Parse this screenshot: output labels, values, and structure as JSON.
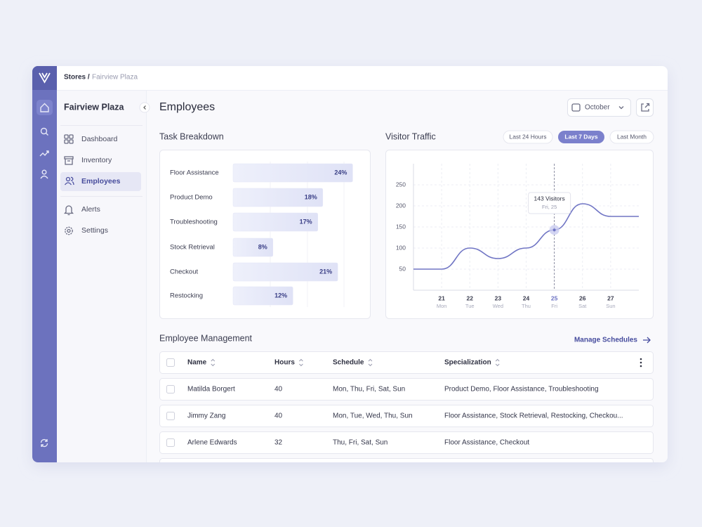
{
  "breadcrumb": {
    "root": "Stores /",
    "current": "Fairview Plaza"
  },
  "sidebar": {
    "store": "Fairview Plaza",
    "items": [
      "Dashboard",
      "Inventory",
      "Employees",
      "Alerts",
      "Settings"
    ],
    "active": "Employees"
  },
  "header": {
    "title": "Employees",
    "month": "October"
  },
  "task_breakdown": {
    "type": "bar",
    "title": "Task Breakdown",
    "categories": [
      "Floor Assistance",
      "Product Demo",
      "Troubleshooting",
      "Stock Retrieval",
      "Checkout",
      "Restocking"
    ],
    "values": [
      24,
      18,
      17,
      8,
      21,
      12
    ],
    "value_labels": [
      "24%",
      "18%",
      "17%",
      "8%",
      "21%",
      "12%"
    ],
    "color": "#e4e6f7"
  },
  "visitor_traffic": {
    "type": "line",
    "title": "Visitor Traffic",
    "ranges": [
      "Last 24 Hours",
      "Last 7 Days",
      "Last Month"
    ],
    "active_range": "Last 7 Days",
    "x": [
      20,
      21,
      22,
      23,
      24,
      25,
      26,
      27,
      28
    ],
    "values": [
      50,
      50,
      100,
      75,
      100,
      143,
      205,
      175,
      175
    ],
    "xlim": [
      20,
      28
    ],
    "xticks": [
      21,
      22,
      23,
      24,
      25,
      26,
      27
    ],
    "xtick_sublabels": [
      "Mon",
      "Tue",
      "Wed",
      "Thu",
      "Fri",
      "Sat",
      "Sun"
    ],
    "ylim": [
      0,
      300
    ],
    "yticks": [
      50,
      100,
      150,
      200,
      250
    ],
    "grid": true,
    "color": "#7075c4",
    "tooltip": {
      "x": 25,
      "label": "143 Visitors",
      "date": "Fri, 25"
    }
  },
  "employee_management": {
    "title": "Employee Management",
    "action": "Manage Schedules",
    "columns": [
      "Name",
      "Hours",
      "Schedule",
      "Specialization"
    ],
    "rows": [
      [
        "Matilda Borgert",
        40,
        "Mon, Thu, Fri, Sat, Sun",
        "Product Demo, Floor Assistance, Troubleshooting"
      ],
      [
        "Jimmy Zang",
        40,
        "Mon, Tue, Wed, Thu, Sun",
        "Floor Assistance, Stock Retrieval, Restocking, Checkou..."
      ],
      [
        "Arlene Edwards",
        32,
        "Thu, Fri, Sat, Sun",
        "Floor Assistance, Checkout"
      ]
    ]
  }
}
